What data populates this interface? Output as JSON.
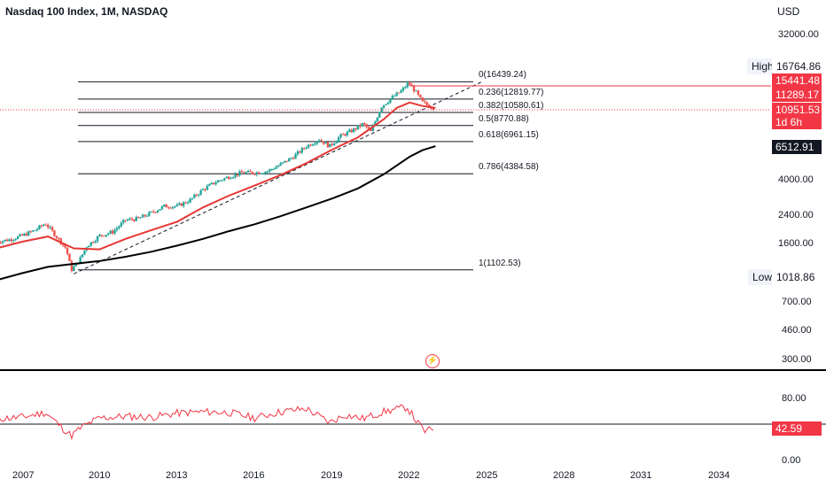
{
  "header": {
    "title": "Nasdaq 100 Index, 1M, NASDAQ",
    "currency": "USD"
  },
  "price_axis": {
    "ticks": [
      "32000.00",
      "4000.00",
      "2400.00",
      "1600.00",
      "700.00",
      "460.00",
      "300.00"
    ]
  },
  "indicator_axis": {
    "ticks": [
      "80.00",
      "0.00"
    ]
  },
  "time_axis": {
    "ticks": [
      "2007",
      "2010",
      "2013",
      "2016",
      "2019",
      "2022",
      "2025",
      "2028",
      "2031",
      "2034"
    ]
  },
  "price_tags": {
    "high_label": "High",
    "high_value": "16764.86",
    "last_close": "15441.48",
    "ma_value": "11289.17",
    "current_price": "10951.53",
    "countdown": "1d 6h",
    "long_ma_value": "6512.91",
    "low_label": "Low",
    "low_value": "1018.86",
    "rsi_value": "42.59"
  },
  "fib_levels": [
    {
      "text": "0(16439.24)",
      "value": 16439.24
    },
    {
      "text": "0.236(12819.77)",
      "value": 12819.77
    },
    {
      "text": "0.382(10580.61)",
      "value": 10580.61
    },
    {
      "text": "0.5(8770.88)",
      "value": 8770.88
    },
    {
      "text": "0.618(6961.15)",
      "value": 6961.15
    },
    {
      "text": "0.786(4384.58)",
      "value": 4384.58
    },
    {
      "text": "1(1102.53)",
      "value": 1102.53
    }
  ],
  "colors": {
    "up": "#26a69a",
    "down": "#ef5350",
    "ma_fast": "#e53935",
    "ma_slow": "#000000",
    "rsi": "#f23645",
    "fib_line": "#131722",
    "tag_red": "#f23645",
    "tag_black": "#131722"
  },
  "chart_data": {
    "type": "line",
    "title": "Nasdaq 100 Index, 1M, NASDAQ",
    "scale": "log",
    "x_range": [
      2006,
      2035
    ],
    "y_range": [
      300,
      32000
    ],
    "series": [
      {
        "role": "close",
        "x": [
          2006.0,
          2006.5,
          2007.0,
          2007.5,
          2007.9,
          2008.3,
          2008.7,
          2008.9,
          2009.2,
          2009.5,
          2010.0,
          2010.5,
          2011.0,
          2011.5,
          2012.0,
          2012.5,
          2013.0,
          2013.5,
          2014.0,
          2014.5,
          2015.0,
          2015.5,
          2016.0,
          2016.5,
          2017.0,
          2017.5,
          2018.0,
          2018.5,
          2018.9,
          2019.3,
          2019.8,
          2020.2,
          2020.5,
          2020.9,
          2021.3,
          2021.7,
          2021.95,
          2022.2,
          2022.5,
          2022.8,
          2022.95
        ],
        "y": [
          1650,
          1700,
          1800,
          1950,
          2150,
          1800,
          1500,
          1100,
          1250,
          1550,
          1800,
          1900,
          2250,
          2300,
          2500,
          2750,
          2750,
          3000,
          3500,
          3900,
          4200,
          4450,
          4450,
          4550,
          5000,
          5600,
          6500,
          7200,
          6500,
          7500,
          8200,
          9000,
          8000,
          11500,
          13000,
          14500,
          16200,
          14500,
          12200,
          11500,
          11300
        ]
      },
      {
        "role": "moving average (red)",
        "x": [
          2006,
          2007,
          2008,
          2009,
          2010,
          2011,
          2012,
          2013,
          2014,
          2015,
          2016,
          2017,
          2018,
          2019,
          2020,
          2021,
          2021.5,
          2022,
          2022.5,
          2023.0
        ],
        "y": [
          1500,
          1650,
          1780,
          1500,
          1480,
          1720,
          1950,
          2200,
          2700,
          3200,
          3700,
          4300,
          5100,
          6200,
          7400,
          9600,
          11300,
          12200,
          11600,
          11289
        ]
      },
      {
        "role": "moving average (black)",
        "x": [
          2006,
          2007,
          2008,
          2009,
          2010,
          2011,
          2012,
          2013,
          2014,
          2015,
          2016,
          2017,
          2018,
          2019,
          2020,
          2021,
          2022,
          2022.5,
          2023.0
        ],
        "y": [
          950,
          1050,
          1150,
          1200,
          1250,
          1330,
          1430,
          1560,
          1720,
          1920,
          2120,
          2380,
          2700,
          3070,
          3550,
          4350,
          5600,
          6150,
          6513
        ]
      },
      {
        "role": "rsi",
        "x": [
          2006,
          2007,
          2007.9,
          2008.5,
          2008.9,
          2009.3,
          2010,
          2011,
          2012,
          2013,
          2014,
          2015,
          2016,
          2017,
          2018,
          2018.9,
          2019.5,
          2020.2,
          2021,
          2021.9,
          2022.3,
          2022.6,
          2022.95
        ],
        "y": [
          55,
          57,
          63,
          45,
          33,
          44,
          56,
          58,
          57,
          62,
          64,
          63,
          56,
          64,
          68,
          50,
          60,
          55,
          64,
          70,
          50,
          38,
          42.6
        ]
      }
    ]
  }
}
